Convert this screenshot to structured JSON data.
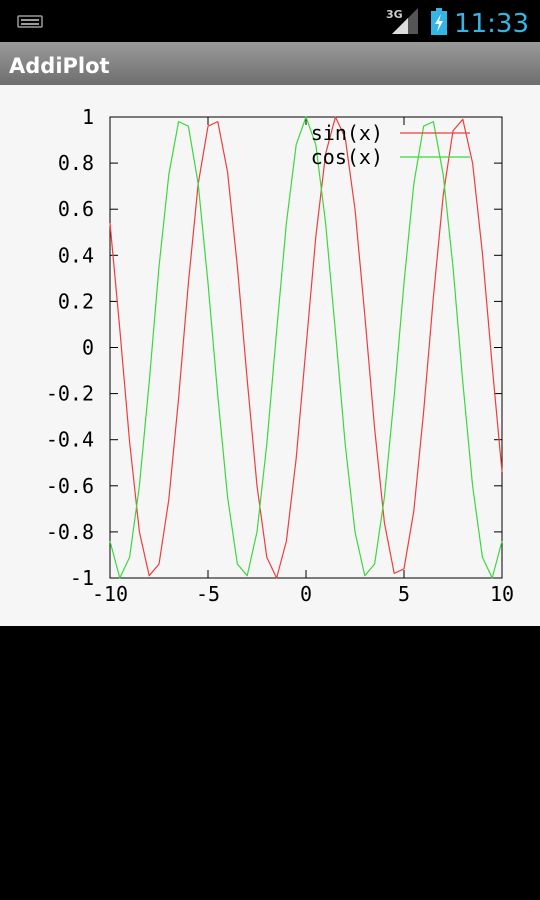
{
  "status_bar": {
    "network": "3G",
    "time": "11:33"
  },
  "app_bar": {
    "title": "AddiPlot"
  },
  "chart_data": {
    "type": "line",
    "x": [
      -10,
      -9.5,
      -9,
      -8.5,
      -8,
      -7.5,
      -7,
      -6.5,
      -6,
      -5.5,
      -5,
      -4.5,
      -4,
      -3.5,
      -3,
      -2.5,
      -2,
      -1.5,
      -1,
      -0.5,
      0,
      0.5,
      1,
      1.5,
      2,
      2.5,
      3,
      3.5,
      4,
      4.5,
      5,
      5.5,
      6,
      6.5,
      7,
      7.5,
      8,
      8.5,
      9,
      9.5,
      10
    ],
    "series": [
      {
        "name": "sin(x)",
        "color": "#f03c3c",
        "values": [
          0.54,
          0.08,
          -0.41,
          -0.8,
          -0.99,
          -0.94,
          -0.66,
          -0.22,
          0.28,
          0.71,
          0.96,
          0.98,
          0.76,
          0.35,
          -0.14,
          -0.6,
          -0.91,
          -1,
          -0.84,
          -0.48,
          0,
          0.48,
          0.84,
          1,
          0.91,
          0.6,
          0.14,
          -0.35,
          -0.76,
          -0.98,
          -0.96,
          -0.71,
          -0.28,
          0.22,
          0.66,
          0.94,
          0.99,
          0.8,
          0.41,
          -0.08,
          -0.54
        ]
      },
      {
        "name": "cos(x)",
        "color": "#3cd83c",
        "values": [
          -0.84,
          -1,
          -0.91,
          -0.6,
          -0.15,
          0.35,
          0.75,
          0.98,
          0.96,
          0.71,
          0.28,
          -0.21,
          -0.65,
          -0.94,
          -0.99,
          -0.8,
          -0.42,
          0.07,
          0.54,
          0.88,
          1,
          0.88,
          0.54,
          0.07,
          -0.42,
          -0.8,
          -0.99,
          -0.94,
          -0.65,
          -0.21,
          0.28,
          0.71,
          0.96,
          0.98,
          0.75,
          0.35,
          -0.15,
          -0.6,
          -0.91,
          -1,
          -0.84
        ]
      }
    ],
    "xlim": [
      -10,
      10
    ],
    "ylim": [
      -1,
      1
    ],
    "xticks": [
      -10,
      -5,
      0,
      5,
      10
    ],
    "yticks": [
      -1,
      -0.8,
      -0.6,
      -0.4,
      -0.2,
      0,
      0.2,
      0.4,
      0.6,
      0.8,
      1
    ],
    "grid": false,
    "legend": "upper right"
  }
}
